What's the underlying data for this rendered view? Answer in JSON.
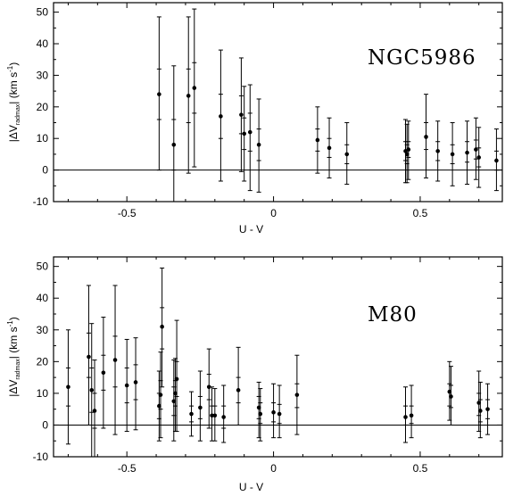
{
  "chart_data": [
    {
      "type": "scatter",
      "title": "",
      "annotation": "NGC5986",
      "xlabel": "U - V",
      "ylabel": "|ΔV",
      "ylabel_sub": "rad",
      "ylabel_sub2": "max",
      "ylabel_suffix": "  (km s",
      "ylabel_sup": "-1",
      "ylabel_end": ")",
      "xlim": [
        -0.75,
        0.78
      ],
      "ylim": [
        -10,
        53
      ],
      "xticks": [
        -0.5,
        0,
        0.5
      ],
      "xtick_labels": [
        "-0.5",
        "0",
        "0.5"
      ],
      "yticks": [
        -10,
        0,
        10,
        20,
        30,
        40,
        50
      ],
      "ytick_labels": [
        "-10",
        "0",
        "10",
        "20",
        "30",
        "40",
        "50"
      ],
      "hline": 0,
      "grid": false,
      "points": [
        {
          "x": -0.39,
          "y": 24,
          "ylow": 0,
          "yhigh": 48.5,
          "lo": 16,
          "hi": 32
        },
        {
          "x": -0.34,
          "y": 8,
          "ylow": -10,
          "yhigh": 33,
          "lo": 0,
          "hi": 16
        },
        {
          "x": -0.29,
          "y": 23.5,
          "ylow": -1,
          "yhigh": 48.5,
          "lo": 15,
          "hi": 32
        },
        {
          "x": -0.27,
          "y": 26,
          "ylow": 1,
          "yhigh": 51,
          "lo": 18,
          "hi": 34
        },
        {
          "x": -0.18,
          "y": 17,
          "ylow": -3.5,
          "yhigh": 38,
          "lo": 10,
          "hi": 24
        },
        {
          "x": -0.11,
          "y": 17.5,
          "ylow": -0.5,
          "yhigh": 35.5,
          "lo": 11.5,
          "hi": 23.5
        },
        {
          "x": -0.1,
          "y": 11.5,
          "ylow": -3.5,
          "yhigh": 26.5,
          "lo": 6.5,
          "hi": 16.5
        },
        {
          "x": -0.08,
          "y": 12,
          "ylow": -6.5,
          "yhigh": 27,
          "lo": 6,
          "hi": 18
        },
        {
          "x": -0.05,
          "y": 8,
          "ylow": -7,
          "yhigh": 22.5,
          "lo": 3,
          "hi": 13
        },
        {
          "x": 0.15,
          "y": 9.5,
          "ylow": -1,
          "yhigh": 20,
          "lo": 6,
          "hi": 13
        },
        {
          "x": 0.19,
          "y": 7,
          "ylow": -2.5,
          "yhigh": 16.5,
          "lo": 4,
          "hi": 10
        },
        {
          "x": 0.25,
          "y": 5,
          "ylow": -4.5,
          "yhigh": 15,
          "lo": 2,
          "hi": 8
        },
        {
          "x": 0.45,
          "y": 6,
          "ylow": -4,
          "yhigh": 16,
          "lo": 3,
          "hi": 9
        },
        {
          "x": 0.455,
          "y": 5,
          "ylow": -4,
          "yhigh": 14.5,
          "lo": 2,
          "hi": 8
        },
        {
          "x": 0.46,
          "y": 6.5,
          "ylow": -3,
          "yhigh": 15.5,
          "lo": 4,
          "hi": 9
        },
        {
          "x": 0.52,
          "y": 10.5,
          "ylow": -2.5,
          "yhigh": 24,
          "lo": 6.5,
          "hi": 15
        },
        {
          "x": 0.56,
          "y": 6,
          "ylow": -3.5,
          "yhigh": 15.5,
          "lo": 3,
          "hi": 9
        },
        {
          "x": 0.61,
          "y": 5,
          "ylow": -5,
          "yhigh": 15,
          "lo": 2,
          "hi": 8
        },
        {
          "x": 0.66,
          "y": 5.5,
          "ylow": -4.5,
          "yhigh": 15.5,
          "lo": 2.5,
          "hi": 9
        },
        {
          "x": 0.69,
          "y": 6.5,
          "ylow": -3,
          "yhigh": 16.5,
          "lo": 3.5,
          "hi": 9.5
        },
        {
          "x": 0.7,
          "y": 4,
          "ylow": -5.5,
          "yhigh": 13.5,
          "lo": 1,
          "hi": 7
        },
        {
          "x": 0.76,
          "y": 3,
          "ylow": -6.5,
          "yhigh": 13,
          "lo": 0,
          "hi": 6
        }
      ]
    },
    {
      "type": "scatter",
      "title": "",
      "annotation": "M80",
      "xlabel": "U - V",
      "ylabel": "|ΔV",
      "ylabel_sub": "rad",
      "ylabel_sub2": "max",
      "ylabel_suffix": "  (km s",
      "ylabel_sup": "-1",
      "ylabel_end": ")",
      "xlim": [
        -0.75,
        0.78
      ],
      "ylim": [
        -10,
        53
      ],
      "xticks": [
        -0.5,
        0,
        0.5
      ],
      "xtick_labels": [
        "-0.5",
        "0",
        "0.5"
      ],
      "yticks": [
        -10,
        0,
        10,
        20,
        30,
        40,
        50
      ],
      "ytick_labels": [
        "-10",
        "0",
        "10",
        "20",
        "30",
        "40",
        "50"
      ],
      "hline": 0,
      "grid": false,
      "points": [
        {
          "x": -0.7,
          "y": 12,
          "ylow": -6,
          "yhigh": 30,
          "lo": 6,
          "hi": 18
        },
        {
          "x": -0.63,
          "y": 21.5,
          "ylow": 0,
          "yhigh": 44,
          "lo": 15,
          "hi": 29
        },
        {
          "x": -0.62,
          "y": 11,
          "ylow": -10,
          "yhigh": 32,
          "lo": 4,
          "hi": 18
        },
        {
          "x": -0.61,
          "y": 4.5,
          "ylow": -10,
          "yhigh": 20.5,
          "lo": -1,
          "hi": 10
        },
        {
          "x": -0.58,
          "y": 16.5,
          "ylow": -1,
          "yhigh": 34,
          "lo": 11,
          "hi": 22
        },
        {
          "x": -0.54,
          "y": 20.5,
          "ylow": -3,
          "yhigh": 44,
          "lo": 12,
          "hi": 28
        },
        {
          "x": -0.5,
          "y": 12.5,
          "ylow": -2,
          "yhigh": 27,
          "lo": 7,
          "hi": 18
        },
        {
          "x": -0.47,
          "y": 13.5,
          "ylow": -1.5,
          "yhigh": 27.5,
          "lo": 8,
          "hi": 19
        },
        {
          "x": -0.39,
          "y": 6,
          "ylow": -5,
          "yhigh": 17,
          "lo": 2,
          "hi": 10
        },
        {
          "x": -0.385,
          "y": 9.5,
          "ylow": -4,
          "yhigh": 23,
          "lo": 5,
          "hi": 14
        },
        {
          "x": -0.38,
          "y": 31,
          "ylow": 12,
          "yhigh": 49.5,
          "lo": 24,
          "hi": 37
        },
        {
          "x": -0.34,
          "y": 7.5,
          "ylow": -5,
          "yhigh": 20.5,
          "lo": 3,
          "hi": 12
        },
        {
          "x": -0.335,
          "y": 10,
          "ylow": -2,
          "yhigh": 21,
          "lo": 6,
          "hi": 14
        },
        {
          "x": -0.33,
          "y": 14.5,
          "ylow": -2,
          "yhigh": 33,
          "lo": 9,
          "hi": 20
        },
        {
          "x": -0.28,
          "y": 3.5,
          "ylow": -3.5,
          "yhigh": 10.5,
          "lo": 1,
          "hi": 6
        },
        {
          "x": -0.25,
          "y": 5.5,
          "ylow": -5,
          "yhigh": 17,
          "lo": 2,
          "hi": 9
        },
        {
          "x": -0.22,
          "y": 12,
          "ylow": -1,
          "yhigh": 24,
          "lo": 8,
          "hi": 16
        },
        {
          "x": -0.21,
          "y": 3,
          "ylow": -5,
          "yhigh": 12,
          "lo": 0,
          "hi": 6
        },
        {
          "x": -0.2,
          "y": 3,
          "ylow": -5,
          "yhigh": 11.5,
          "lo": 0,
          "hi": 6
        },
        {
          "x": -0.17,
          "y": 2.5,
          "ylow": -5.5,
          "yhigh": 12.5,
          "lo": -1,
          "hi": 6
        },
        {
          "x": -0.12,
          "y": 11,
          "ylow": 0,
          "yhigh": 24.5,
          "lo": 7,
          "hi": 15
        },
        {
          "x": -0.05,
          "y": 5.5,
          "ylow": -4,
          "yhigh": 13.5,
          "lo": 2,
          "hi": 9
        },
        {
          "x": -0.045,
          "y": 3.5,
          "ylow": -5,
          "yhigh": 11.5,
          "lo": 0.5,
          "hi": 7
        },
        {
          "x": 0,
          "y": 4,
          "ylow": -4,
          "yhigh": 13,
          "lo": 1,
          "hi": 7
        },
        {
          "x": 0.02,
          "y": 3.5,
          "ylow": -4,
          "yhigh": 12.5,
          "lo": 0.5,
          "hi": 6.5
        },
        {
          "x": 0.08,
          "y": 9.5,
          "ylow": -3,
          "yhigh": 22,
          "lo": 5.5,
          "hi": 13
        },
        {
          "x": 0.45,
          "y": 2.5,
          "ylow": -5.5,
          "yhigh": 12,
          "lo": 0,
          "hi": 6
        },
        {
          "x": 0.47,
          "y": 3,
          "ylow": -4,
          "yhigh": 12.5,
          "lo": 0.5,
          "hi": 6
        },
        {
          "x": 0.6,
          "y": 10.5,
          "ylow": 1.5,
          "yhigh": 20,
          "lo": 6,
          "hi": 13
        },
        {
          "x": 0.605,
          "y": 9,
          "ylow": 0,
          "yhigh": 18.5,
          "lo": 5.5,
          "hi": 12.5
        },
        {
          "x": 0.7,
          "y": 7,
          "ylow": -2,
          "yhigh": 17,
          "lo": 3,
          "hi": 10
        },
        {
          "x": 0.705,
          "y": 4.5,
          "ylow": -4,
          "yhigh": 13.5,
          "lo": 1,
          "hi": 8
        },
        {
          "x": 0.73,
          "y": 5,
          "ylow": -3,
          "yhigh": 13,
          "lo": 2,
          "hi": 8
        }
      ]
    }
  ]
}
